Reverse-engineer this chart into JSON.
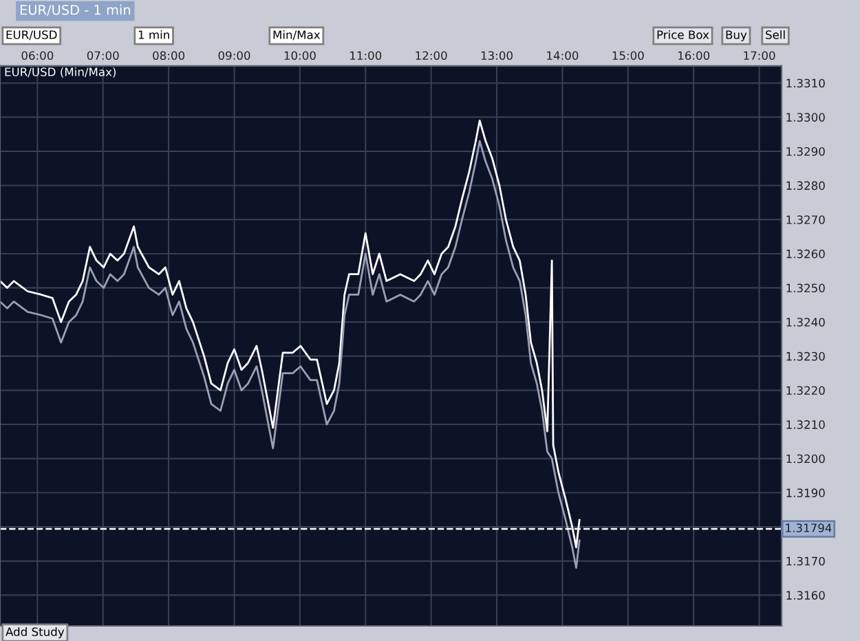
{
  "chart_data": {
    "type": "line",
    "title": "EUR/USD - 1 min",
    "annotations": [
      "EUR/USD (Min/Max)",
      "EUR/USD",
      "1 min",
      "Min/Max",
      "Price Box",
      "Buy",
      "Sell",
      "Add Study"
    ],
    "x": [
      5.43,
      5.54,
      5.64,
      5.85,
      6.06,
      6.23,
      6.36,
      6.48,
      6.59,
      6.69,
      6.8,
      6.9,
      7.01,
      7.11,
      7.22,
      7.32,
      7.47,
      7.53,
      7.7,
      7.85,
      7.95,
      8.06,
      8.16,
      8.27,
      8.37,
      8.54,
      8.65,
      8.79,
      8.9,
      9.0,
      9.11,
      9.21,
      9.34,
      9.42,
      9.59,
      9.74,
      9.89,
      10.01,
      10.16,
      10.26,
      10.41,
      10.52,
      10.6,
      10.68,
      10.75,
      10.89,
      11.0,
      11.11,
      11.21,
      11.32,
      11.53,
      11.74,
      11.84,
      11.95,
      12.05,
      12.16,
      12.26,
      12.37,
      12.47,
      12.58,
      12.68,
      12.74,
      12.83,
      12.93,
      13.04,
      13.14,
      13.25,
      13.35,
      13.44,
      13.52,
      13.61,
      13.69,
      13.77,
      13.84,
      13.86,
      13.94,
      14.05,
      14.15,
      14.21,
      14.26
    ],
    "series": [
      {
        "color": "#ffffff",
        "values": [
          1.3252,
          1.325,
          1.3252,
          1.3249,
          1.3248,
          1.3247,
          1.324,
          1.3246,
          1.3248,
          1.3252,
          1.3262,
          1.3258,
          1.3256,
          1.326,
          1.3258,
          1.326,
          1.3268,
          1.3262,
          1.3256,
          1.3254,
          1.3256,
          1.3248,
          1.3252,
          1.3244,
          1.324,
          1.323,
          1.3222,
          1.322,
          1.3228,
          1.3232,
          1.3226,
          1.3228,
          1.3233,
          1.3226,
          1.3209,
          1.3231,
          1.3231,
          1.3233,
          1.3229,
          1.3229,
          1.3216,
          1.322,
          1.3228,
          1.3248,
          1.3254,
          1.3254,
          1.3266,
          1.3254,
          1.326,
          1.3252,
          1.3254,
          1.3252,
          1.3254,
          1.3258,
          1.3254,
          1.326,
          1.3262,
          1.3268,
          1.3276,
          1.3284,
          1.3293,
          1.3299,
          1.3293,
          1.3288,
          1.328,
          1.327,
          1.3262,
          1.3258,
          1.3248,
          1.3234,
          1.3228,
          1.322,
          1.3208,
          1.3258,
          1.3204,
          1.3196,
          1.3188,
          1.318,
          1.3174,
          1.3182
        ]
      },
      {
        "color": "#9aa0b4",
        "values": [
          1.3246,
          1.3244,
          1.3246,
          1.3243,
          1.3242,
          1.3241,
          1.3234,
          1.324,
          1.3242,
          1.3246,
          1.3256,
          1.3252,
          1.325,
          1.3254,
          1.3252,
          1.3254,
          1.3262,
          1.3256,
          1.325,
          1.3248,
          1.325,
          1.3242,
          1.3246,
          1.3238,
          1.3234,
          1.3224,
          1.3216,
          1.3214,
          1.3222,
          1.3226,
          1.322,
          1.3222,
          1.3227,
          1.322,
          1.3203,
          1.3225,
          1.3225,
          1.3227,
          1.3223,
          1.3223,
          1.321,
          1.3214,
          1.3222,
          1.3242,
          1.3248,
          1.3248,
          1.326,
          1.3248,
          1.3254,
          1.3246,
          1.3248,
          1.3246,
          1.3248,
          1.3252,
          1.3248,
          1.3254,
          1.3256,
          1.3262,
          1.327,
          1.3278,
          1.3287,
          1.3293,
          1.3287,
          1.3282,
          1.3274,
          1.3264,
          1.3256,
          1.3252,
          1.3242,
          1.3228,
          1.3222,
          1.3214,
          1.3202,
          1.32,
          1.3198,
          1.319,
          1.3182,
          1.3174,
          1.3168,
          1.3176
        ]
      }
    ],
    "xlim": [
      5.43,
      17.34
    ],
    "xticks": [
      {
        "value": 6,
        "label": "06:00"
      },
      {
        "value": 7,
        "label": "07:00"
      },
      {
        "value": 8,
        "label": "08:00"
      },
      {
        "value": 9,
        "label": "09:00"
      },
      {
        "value": 10,
        "label": "10:00"
      },
      {
        "value": 11,
        "label": "11:00"
      },
      {
        "value": 12,
        "label": "12:00"
      },
      {
        "value": 13,
        "label": "13:00"
      },
      {
        "value": 14,
        "label": "14:00"
      },
      {
        "value": 15,
        "label": "15:00"
      },
      {
        "value": 16,
        "label": "16:00"
      },
      {
        "value": 17,
        "label": "17:00"
      }
    ],
    "ylim": [
      1.3151,
      1.3315
    ],
    "yticks": [
      {
        "value": 1.316,
        "label": "1.3160"
      },
      {
        "value": 1.317,
        "label": "1.3170"
      },
      {
        "value": 1.318,
        "label": null
      },
      {
        "value": 1.319,
        "label": "1.3190"
      },
      {
        "value": 1.32,
        "label": "1.3200"
      },
      {
        "value": 1.321,
        "label": "1.3210"
      },
      {
        "value": 1.322,
        "label": "1.3220"
      },
      {
        "value": 1.323,
        "label": "1.3230"
      },
      {
        "value": 1.324,
        "label": "1.3240"
      },
      {
        "value": 1.325,
        "label": "1.3250"
      },
      {
        "value": 1.326,
        "label": "1.3260"
      },
      {
        "value": 1.327,
        "label": "1.3270"
      },
      {
        "value": 1.328,
        "label": "1.3280"
      },
      {
        "value": 1.329,
        "label": "1.3290"
      },
      {
        "value": 1.33,
        "label": "1.3300"
      },
      {
        "value": 1.331,
        "label": "1.3310"
      }
    ],
    "ref_lines": [
      {
        "axis": "y",
        "value": 1.31794,
        "label": "1.31794",
        "color": "#ffffff",
        "line_style": "dashed"
      }
    ],
    "grid": true,
    "marker": "none",
    "line_style": "solid",
    "legend": false
  }
}
